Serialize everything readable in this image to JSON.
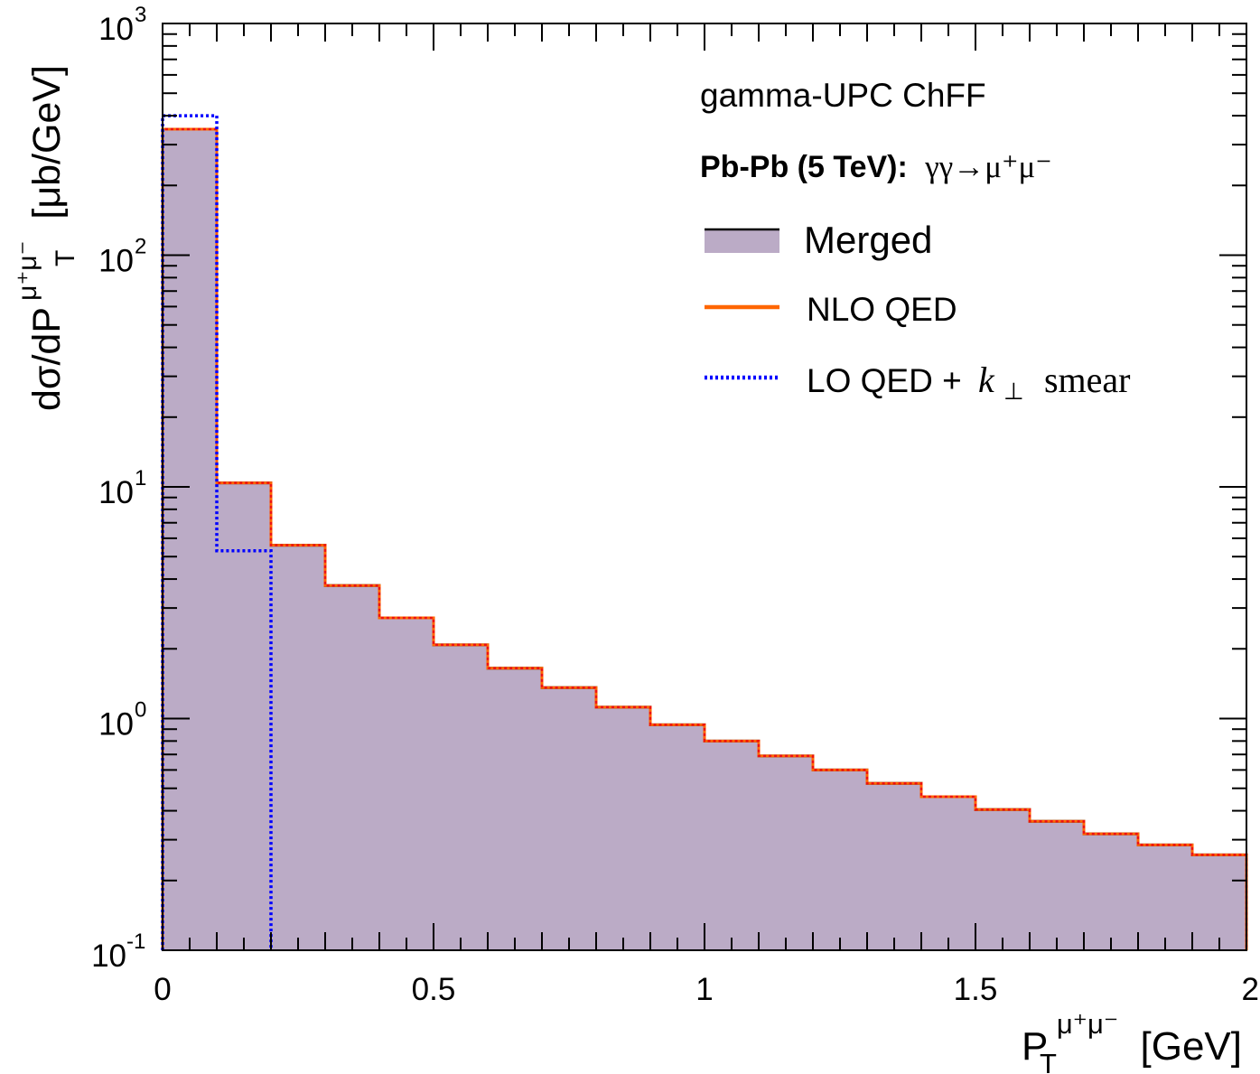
{
  "chart_data": {
    "type": "bar",
    "subtype": "step-histogram",
    "title": "gamma-UPC ChFF",
    "subtitle_bold": "Pb-Pb (5 TeV):",
    "subtitle_process": "γγ→μ⁺μ⁻",
    "xlabel": {
      "base": "P",
      "sub": "T",
      "sup": "μ⁺μ⁻",
      "unit": "[GeV]"
    },
    "ylabel": {
      "prefix": "dσ/dP",
      "sub": "T",
      "sup": "μ⁺μ⁻",
      "unit": "[μb/GeV]"
    },
    "xlim": [
      0,
      2
    ],
    "ylim": [
      0.1,
      1000
    ],
    "yscale": "log",
    "x_ticks": [
      {
        "value": 0,
        "label": "0"
      },
      {
        "value": 0.5,
        "label": "0.5"
      },
      {
        "value": 1,
        "label": "1"
      },
      {
        "value": 1.5,
        "label": "1.5"
      },
      {
        "value": 2,
        "label": "2"
      }
    ],
    "y_ticks": [
      {
        "value": 0.1,
        "base": "10",
        "exp": "-1"
      },
      {
        "value": 1,
        "base": "10",
        "exp": "0"
      },
      {
        "value": 10,
        "base": "10",
        "exp": "1"
      },
      {
        "value": 100,
        "base": "10",
        "exp": "2"
      },
      {
        "value": 1000,
        "base": "10",
        "exp": "3"
      }
    ],
    "bin_edges": [
      0,
      0.1,
      0.2,
      0.3,
      0.4,
      0.5,
      0.6,
      0.7,
      0.8,
      0.9,
      1.0,
      1.1,
      1.2,
      1.3,
      1.4,
      1.5,
      1.6,
      1.7,
      1.8,
      1.9,
      2.0
    ],
    "series": [
      {
        "name": "Merged",
        "style": "filled",
        "fill": "#bbabc6",
        "stroke": "#000000",
        "values": [
          350,
          10.4,
          5.6,
          3.75,
          2.72,
          2.08,
          1.65,
          1.36,
          1.12,
          0.94,
          0.8,
          0.69,
          0.6,
          0.525,
          0.46,
          0.405,
          0.36,
          0.318,
          0.285,
          0.258
        ]
      },
      {
        "name": "NLO QED",
        "style": "solid",
        "stroke": "#ff6600",
        "values": [
          350,
          10.4,
          5.6,
          3.75,
          2.72,
          2.08,
          1.65,
          1.36,
          1.12,
          0.94,
          0.8,
          0.69,
          0.6,
          0.525,
          0.46,
          0.405,
          0.36,
          0.318,
          0.285,
          0.258
        ]
      },
      {
        "name": "LO QED + k⊥ smear",
        "style": "dotted",
        "stroke": "#0000ff",
        "values": [
          400,
          5.3
        ]
      }
    ],
    "overlay_color": "#ee1111",
    "legend": {
      "position": "top-right",
      "entries": [
        {
          "label": "Merged"
        },
        {
          "label": "NLO QED"
        },
        {
          "label_main": "LO QED +",
          "label_k": "k",
          "label_perp": "⊥",
          "label_tail": "smear"
        }
      ]
    }
  }
}
